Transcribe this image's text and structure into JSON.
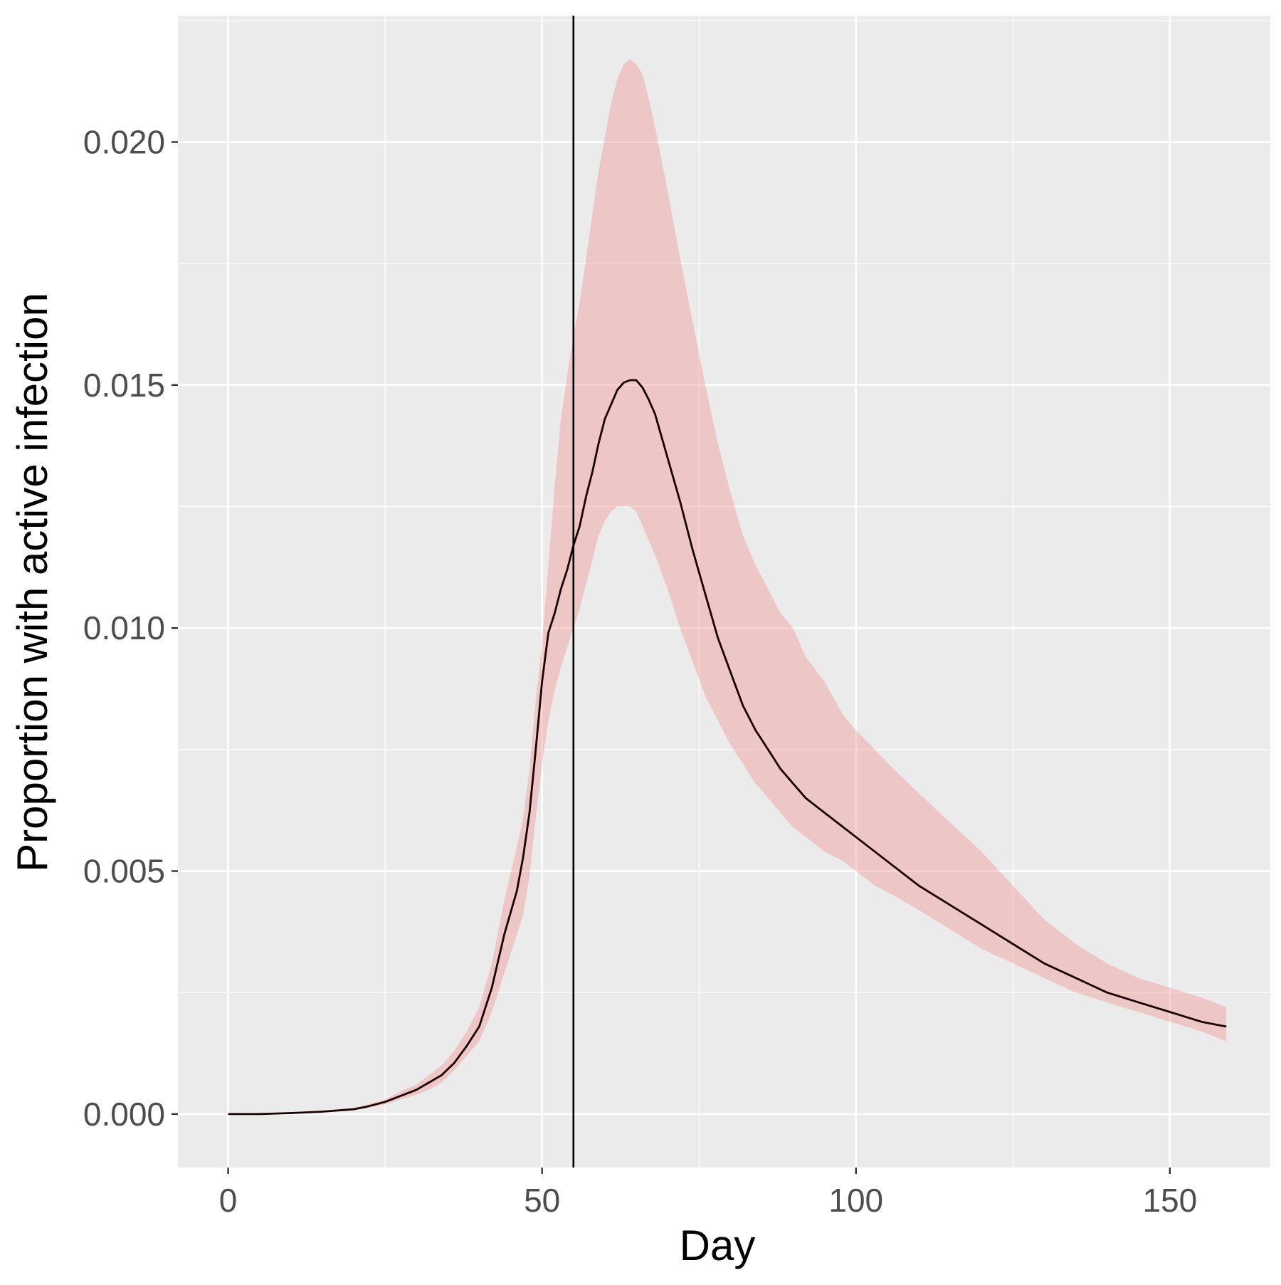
{
  "chart_data": {
    "type": "line",
    "title": "",
    "xlabel": "Day",
    "ylabel": "Proportion with active infection",
    "xlim": [
      -8,
      166
    ],
    "ylim": [
      -0.0011,
      0.0226
    ],
    "x_ticks": [
      0,
      50,
      100,
      150
    ],
    "x_tick_labels": [
      "0",
      "50",
      "100",
      "150"
    ],
    "x_minor_ticks": [
      25,
      75,
      125
    ],
    "y_ticks": [
      0.0,
      0.005,
      0.01,
      0.015,
      0.02
    ],
    "y_tick_labels": [
      "0.000",
      "0.005",
      "0.010",
      "0.015",
      "0.020"
    ],
    "y_minor_ticks": [
      0.0025,
      0.0075,
      0.0125,
      0.0175,
      0.0225
    ],
    "grid": true,
    "vertical_line_x": 55,
    "colors": {
      "panel_background": "#ebebeb",
      "grid": "#ffffff",
      "band_fill": "#f08080",
      "band_opacity": 0.35,
      "line": "#1a0000",
      "vline": "#000000",
      "tick_label": "#4d4d4d",
      "axis_title": "#000000"
    },
    "series": [
      {
        "x": [
          0,
          5,
          10,
          15,
          20,
          22,
          25,
          28,
          30,
          32,
          34,
          36,
          38,
          40,
          42,
          44,
          46,
          47,
          48,
          49,
          50,
          51,
          52,
          53,
          54,
          55,
          56,
          57,
          58,
          59,
          60,
          61,
          62,
          63,
          64,
          65,
          66,
          67,
          68,
          70,
          72,
          74,
          76,
          78,
          80,
          82,
          84,
          86,
          88,
          90,
          92,
          95,
          98,
          100,
          103,
          106,
          110,
          115,
          120,
          125,
          130,
          135,
          140,
          145,
          150,
          155,
          159
        ],
        "y": [
          0.0,
          0.0,
          2e-05,
          5e-05,
          0.0001,
          0.00015,
          0.00025,
          0.0004,
          0.0005,
          0.00065,
          0.0008,
          0.00105,
          0.0014,
          0.0018,
          0.0026,
          0.0037,
          0.0046,
          0.0053,
          0.0062,
          0.0075,
          0.0089,
          0.0099,
          0.0103,
          0.0108,
          0.0112,
          0.0117,
          0.0121,
          0.0127,
          0.0132,
          0.0138,
          0.0143,
          0.0146,
          0.0149,
          0.01505,
          0.0151,
          0.0151,
          0.01495,
          0.0147,
          0.0144,
          0.0135,
          0.0126,
          0.0116,
          0.0107,
          0.0098,
          0.0091,
          0.0084,
          0.0079,
          0.0075,
          0.0071,
          0.0068,
          0.0065,
          0.0062,
          0.0059,
          0.0057,
          0.0054,
          0.0051,
          0.0047,
          0.0043,
          0.0039,
          0.0035,
          0.0031,
          0.0028,
          0.0025,
          0.0023,
          0.0021,
          0.0019,
          0.0018
        ]
      }
    ],
    "band": {
      "x": [
        0,
        5,
        10,
        15,
        20,
        22,
        25,
        28,
        30,
        32,
        34,
        36,
        38,
        40,
        42,
        44,
        46,
        47,
        48,
        49,
        50,
        51,
        52,
        53,
        54,
        55,
        56,
        57,
        58,
        59,
        60,
        61,
        62,
        63,
        64,
        65,
        66,
        67,
        68,
        70,
        72,
        74,
        76,
        78,
        80,
        82,
        84,
        86,
        88,
        90,
        92,
        95,
        98,
        100,
        103,
        106,
        110,
        115,
        120,
        125,
        130,
        135,
        140,
        145,
        150,
        155,
        159
      ],
      "lower": [
        0.0,
        0.0,
        1e-05,
        4e-05,
        8e-05,
        0.00012,
        0.0002,
        0.00032,
        0.0004,
        0.0005,
        0.00065,
        0.0009,
        0.0012,
        0.0015,
        0.0021,
        0.0029,
        0.0037,
        0.0041,
        0.0049,
        0.0061,
        0.0072,
        0.0081,
        0.0087,
        0.0092,
        0.0096,
        0.01,
        0.0104,
        0.0109,
        0.0114,
        0.0119,
        0.0122,
        0.0124,
        0.0125,
        0.0125,
        0.0125,
        0.0124,
        0.0121,
        0.0118,
        0.0115,
        0.0108,
        0.01,
        0.0093,
        0.0086,
        0.0081,
        0.0076,
        0.0072,
        0.0068,
        0.0065,
        0.0062,
        0.0059,
        0.0057,
        0.0054,
        0.0052,
        0.005,
        0.0047,
        0.0045,
        0.0042,
        0.0038,
        0.0034,
        0.0031,
        0.0028,
        0.0025,
        0.0023,
        0.0021,
        0.0019,
        0.0017,
        0.0015
      ],
      "upper": [
        0.0,
        0.0,
        3e-05,
        7e-05,
        0.00013,
        0.00019,
        0.0003,
        0.0005,
        0.0006,
        0.0008,
        0.001,
        0.0013,
        0.0017,
        0.0022,
        0.0031,
        0.0044,
        0.0055,
        0.0061,
        0.0071,
        0.0085,
        0.0097,
        0.0113,
        0.0129,
        0.0143,
        0.0152,
        0.016,
        0.0167,
        0.0176,
        0.0185,
        0.0194,
        0.0201,
        0.0208,
        0.0213,
        0.0216,
        0.0217,
        0.0216,
        0.0214,
        0.0209,
        0.0203,
        0.019,
        0.0176,
        0.0163,
        0.015,
        0.0138,
        0.0128,
        0.0119,
        0.0113,
        0.0108,
        0.0103,
        0.01,
        0.0094,
        0.0089,
        0.0082,
        0.0079,
        0.0075,
        0.0071,
        0.0066,
        0.006,
        0.0054,
        0.0047,
        0.004,
        0.0035,
        0.0031,
        0.0028,
        0.0026,
        0.0024,
        0.0022
      ]
    }
  }
}
